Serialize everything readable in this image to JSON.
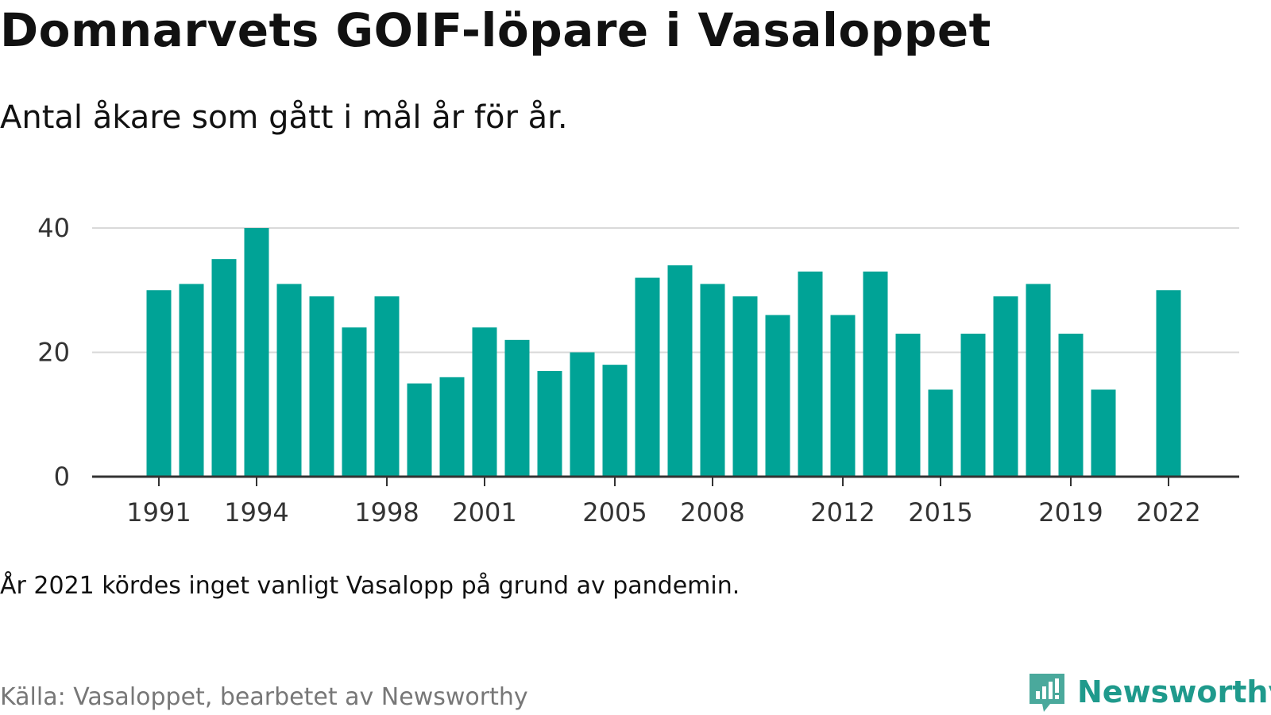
{
  "header": {
    "title": "Domnarvets GOIF-löpare i Vasaloppet",
    "subtitle": "Antal åkare som gått i mål år för år."
  },
  "footer": {
    "note": "År 2021 kördes inget vanligt Vasalopp på grund av pandemin.",
    "source": "Källa: Vasaloppet, bearbetet av Newsworthy",
    "brand": "Newsworthy",
    "brand_icon": "newsworthy-logo-icon"
  },
  "colors": {
    "bar": "#00a396",
    "grid": "#d9d9d9",
    "axis": "#333333",
    "brand": "#1f9a8c"
  },
  "chart_data": {
    "type": "bar",
    "categories": [
      "1991",
      "1992",
      "1993",
      "1994",
      "1995",
      "1996",
      "1997",
      "1998",
      "1999",
      "2000",
      "2001",
      "2002",
      "2003",
      "2004",
      "2005",
      "2006",
      "2007",
      "2008",
      "2009",
      "2010",
      "2011",
      "2012",
      "2013",
      "2014",
      "2015",
      "2016",
      "2017",
      "2018",
      "2019",
      "2020",
      "2021",
      "2022"
    ],
    "values": [
      30,
      31,
      35,
      40,
      31,
      29,
      24,
      29,
      15,
      16,
      24,
      22,
      17,
      20,
      18,
      32,
      34,
      31,
      29,
      26,
      33,
      26,
      33,
      23,
      14,
      23,
      29,
      31,
      23,
      14,
      null,
      30
    ],
    "x_tick_labels": [
      "1991",
      "1994",
      "1998",
      "2001",
      "2005",
      "2008",
      "2012",
      "2015",
      "2019",
      "2022"
    ],
    "y_ticks": [
      0,
      20,
      40
    ],
    "ylim": [
      0,
      40
    ],
    "grid": true,
    "legend": "none"
  }
}
